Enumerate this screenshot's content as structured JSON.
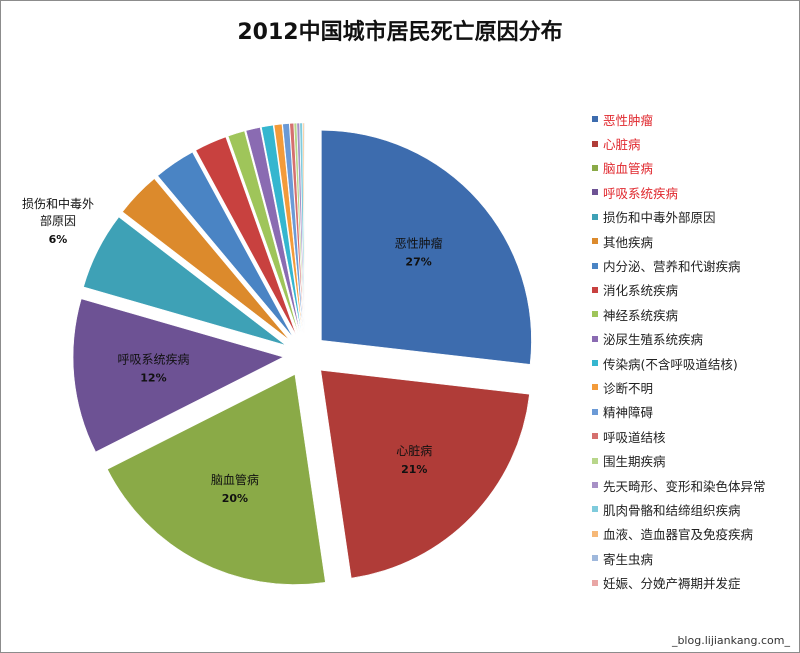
{
  "chart_data": {
    "type": "pie",
    "title": "2012中国城市居民死亡原因分布",
    "legend_position": "right",
    "slices": [
      {
        "label": "恶性肿瘤",
        "value": 27,
        "color": "#3d6cae",
        "highlight": true,
        "data_label": "恶性肿瘤",
        "pct_label": "27%"
      },
      {
        "label": "心脏病",
        "value": 21,
        "color": "#b03c38",
        "highlight": true,
        "data_label": "心脏病",
        "pct_label": "21%"
      },
      {
        "label": "脑血管病",
        "value": 20,
        "color": "#8aaa47",
        "highlight": true,
        "data_label": "脑血管病",
        "pct_label": "20%"
      },
      {
        "label": "呼吸系统疾病",
        "value": 12,
        "color": "#6d5294",
        "highlight": true,
        "data_label": "呼吸系统疾病",
        "pct_label": "12%"
      },
      {
        "label": "损伤和中毒外部原因",
        "value": 6,
        "color": "#3ea1b6",
        "highlight": false,
        "data_label": "损伤和中毒外部原因",
        "pct_label": "6%"
      },
      {
        "label": "其他疾病",
        "value": 3.5,
        "color": "#dc8a2c",
        "highlight": false
      },
      {
        "label": "内分泌、营养和代谢疾病",
        "value": 3.2,
        "color": "#4a84c4",
        "highlight": false
      },
      {
        "label": "消化系统疾病",
        "value": 2.5,
        "color": "#c8413f",
        "highlight": false
      },
      {
        "label": "神经系统疾病",
        "value": 1.3,
        "color": "#9fc55a",
        "highlight": false
      },
      {
        "label": "泌尿生殖系统疾病",
        "value": 1.1,
        "color": "#8a6bb2",
        "highlight": false
      },
      {
        "label": "传染病(不含呼吸道结核)",
        "value": 0.9,
        "color": "#35b6cf",
        "highlight": false
      },
      {
        "label": "诊断不明",
        "value": 0.6,
        "color": "#f39b3a",
        "highlight": false
      },
      {
        "label": "精神障碍",
        "value": 0.5,
        "color": "#6b9ad6",
        "highlight": false
      },
      {
        "label": "呼吸道结核",
        "value": 0.3,
        "color": "#d5706e",
        "highlight": false
      },
      {
        "label": "围生期疾病",
        "value": 0.2,
        "color": "#b8d68a",
        "highlight": false
      },
      {
        "label": "先天畸形、变形和染色体异常",
        "value": 0.2,
        "color": "#a790c6",
        "highlight": false
      },
      {
        "label": "肌肉骨骼和结缔组织疾病",
        "value": 0.2,
        "color": "#7fcbdc",
        "highlight": false
      },
      {
        "label": "血液、造血器官及免疫疾病",
        "value": 0.1,
        "color": "#f6b877",
        "highlight": false
      },
      {
        "label": "寄生虫病",
        "value": 0.05,
        "color": "#9fb8dc",
        "highlight": false
      },
      {
        "label": "妊娠、分娩产褥期并发症",
        "value": 0.02,
        "color": "#e9a6a5",
        "highlight": false
      }
    ]
  },
  "watermark": "_blog.lijiankang.com_"
}
